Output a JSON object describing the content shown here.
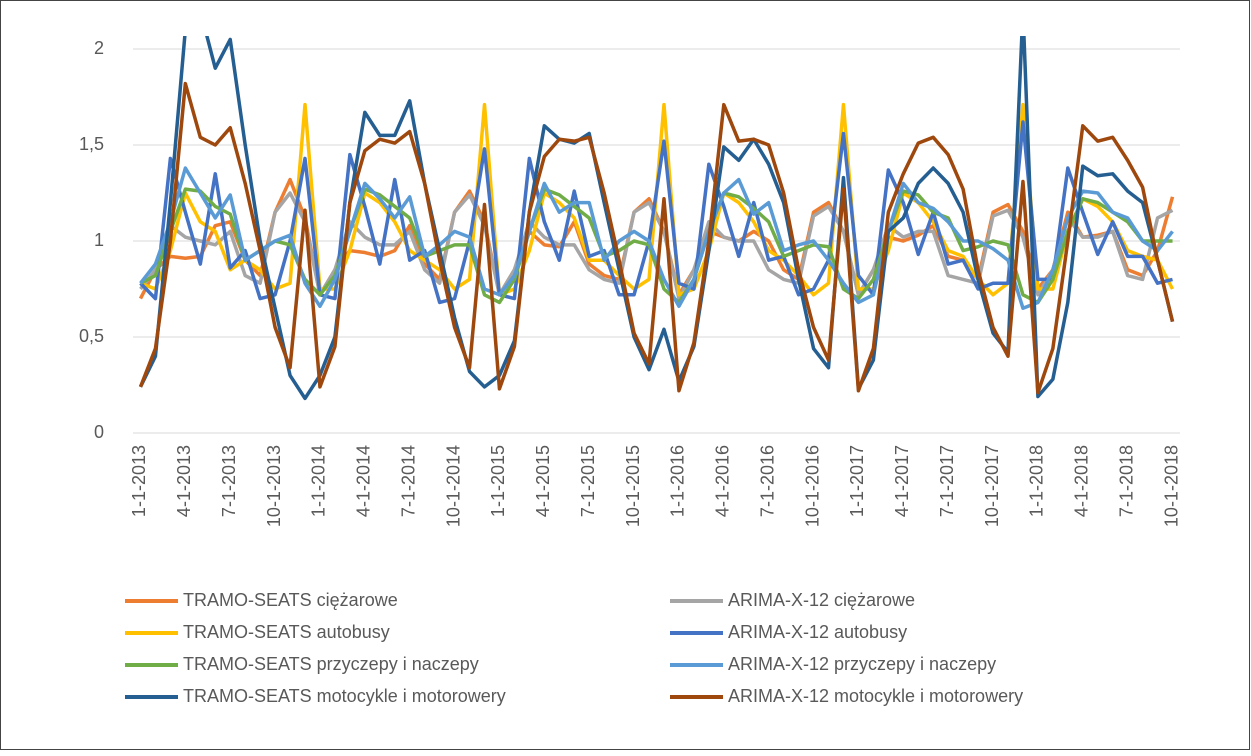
{
  "chart_data": {
    "type": "line",
    "categories": [
      "1-1-2013",
      null,
      null,
      "4-1-2013",
      null,
      null,
      "7-1-2013",
      null,
      null,
      "10-1-2013",
      null,
      null,
      "1-1-2014",
      null,
      null,
      "4-1-2014",
      null,
      null,
      "7-1-2014",
      null,
      null,
      "10-1-2014",
      null,
      null,
      "1-1-2015",
      null,
      null,
      "4-1-2015",
      null,
      null,
      "7-1-2015",
      null,
      null,
      "10-1-2015",
      null,
      null,
      "1-1-2016",
      null,
      null,
      "4-1-2016",
      null,
      null,
      "7-1-2016",
      null,
      null,
      "10-1-2016",
      null,
      null,
      "1-1-2017",
      null,
      null,
      "4-1-2017",
      null,
      null,
      "7-1-2017",
      null,
      null,
      "10-1-2017",
      null,
      null,
      "1-1-2018",
      null,
      null,
      "4-1-2018",
      null,
      null,
      "7-1-2018",
      null,
      null,
      "10-1-2018"
    ],
    "ylim": [
      0,
      2
    ],
    "yticks": [
      0,
      {
        "value": 0.5,
        "label": "0,5"
      },
      1,
      {
        "value": 1.5,
        "label": "1,5"
      },
      2
    ],
    "grid": true,
    "series": [
      {
        "name": "TRAMO-SEATS ciężarowe",
        "color": "#ed7d31",
        "values": [
          0.7,
          0.85,
          0.92,
          0.91,
          0.92,
          1.08,
          1.1,
          0.9,
          0.82,
          1.15,
          1.32,
          1.12,
          0.72,
          0.85,
          0.95,
          0.94,
          0.92,
          0.95,
          1.08,
          0.88,
          0.8,
          1.15,
          1.26,
          1.1,
          0.72,
          0.85,
          1.05,
          0.98,
          0.97,
          1.1,
          0.88,
          0.82,
          0.8,
          1.15,
          1.22,
          1.05,
          0.72,
          0.85,
          1.05,
          1.02,
          1.0,
          1.05,
          1.0,
          0.85,
          0.8,
          1.15,
          1.2,
          1.05,
          0.72,
          0.85,
          1.02,
          1.0,
          1.03,
          1.08,
          0.92,
          0.9,
          0.8,
          1.15,
          1.19,
          1.05,
          0.75,
          0.85,
          1.15,
          1.02,
          1.03,
          1.05,
          0.85,
          0.82,
          0.95,
          1.23
        ]
      },
      {
        "name": "ARIMA-X-12 ciężarowe",
        "color": "#a5a5a5",
        "values": [
          0.75,
          0.85,
          1.08,
          1.02,
          1.0,
          0.98,
          1.05,
          0.82,
          0.78,
          1.15,
          1.25,
          1.1,
          0.72,
          0.85,
          1.1,
          1.02,
          0.98,
          0.98,
          1.05,
          0.85,
          0.78,
          1.15,
          1.24,
          1.08,
          0.72,
          0.85,
          1.1,
          1.02,
          0.98,
          0.98,
          0.85,
          0.8,
          0.78,
          1.15,
          1.2,
          1.05,
          0.7,
          0.85,
          1.1,
          1.02,
          1.0,
          1.0,
          0.85,
          0.8,
          0.78,
          1.13,
          1.18,
          1.05,
          0.72,
          0.85,
          1.08,
          1.02,
          1.05,
          1.05,
          0.82,
          0.8,
          0.78,
          1.13,
          1.16,
          1.02,
          0.72,
          0.85,
          1.12,
          1.02,
          1.02,
          1.05,
          0.82,
          0.8,
          1.12,
          1.16
        ]
      },
      {
        "name": "TRAMO-SEATS autobusy",
        "color": "#ffc000",
        "values": [
          0.78,
          0.75,
          0.95,
          1.25,
          1.1,
          1.05,
          0.85,
          0.9,
          0.85,
          0.75,
          0.78,
          1.71,
          0.75,
          0.75,
          0.95,
          1.25,
          1.2,
          1.1,
          0.95,
          0.9,
          0.85,
          0.75,
          0.8,
          1.71,
          0.72,
          0.75,
          0.95,
          1.25,
          1.2,
          1.12,
          0.9,
          0.9,
          0.82,
          0.75,
          0.8,
          1.71,
          0.72,
          0.75,
          0.95,
          1.25,
          1.2,
          1.1,
          0.95,
          0.9,
          0.82,
          0.72,
          0.78,
          1.71,
          0.75,
          0.75,
          0.95,
          1.25,
          1.2,
          1.1,
          0.95,
          0.92,
          0.8,
          0.72,
          0.78,
          1.71,
          0.75,
          0.75,
          1.05,
          1.22,
          1.18,
          1.1,
          0.95,
          0.92,
          0.9,
          0.75
        ]
      },
      {
        "name": "ARIMA-X-12 autobusy",
        "color": "#4472c4",
        "values": [
          0.78,
          0.7,
          1.43,
          1.15,
          0.88,
          1.35,
          0.86,
          0.95,
          0.7,
          0.72,
          1.0,
          1.43,
          0.72,
          0.7,
          1.45,
          1.18,
          0.88,
          1.32,
          0.9,
          0.95,
          0.68,
          0.7,
          1.0,
          1.48,
          0.72,
          0.7,
          1.43,
          1.1,
          0.9,
          1.26,
          0.92,
          0.95,
          0.72,
          0.72,
          1.0,
          1.52,
          0.78,
          0.75,
          1.4,
          1.18,
          0.92,
          1.2,
          0.9,
          0.92,
          0.72,
          0.75,
          0.9,
          1.56,
          0.82,
          0.72,
          1.37,
          1.2,
          0.93,
          1.15,
          0.88,
          0.9,
          0.75,
          0.78,
          0.78,
          1.62,
          0.8,
          0.8,
          1.38,
          1.15,
          0.93,
          1.1,
          0.92,
          0.92,
          0.78,
          0.8
        ]
      },
      {
        "name": "TRAMO-SEATS przyczepy i naczepy",
        "color": "#70ad47",
        "values": [
          0.78,
          0.82,
          1.05,
          1.27,
          1.26,
          1.18,
          1.14,
          0.9,
          0.95,
          1.0,
          0.98,
          0.8,
          0.72,
          0.82,
          1.05,
          1.27,
          1.24,
          1.18,
          1.12,
          0.92,
          0.95,
          0.98,
          0.98,
          0.72,
          0.68,
          0.8,
          1.05,
          1.27,
          1.24,
          1.18,
          1.12,
          0.92,
          0.95,
          1.0,
          0.98,
          0.75,
          0.68,
          0.8,
          1.05,
          1.25,
          1.23,
          1.17,
          1.1,
          0.92,
          0.95,
          0.98,
          0.97,
          0.75,
          0.7,
          0.8,
          1.05,
          1.26,
          1.24,
          1.15,
          1.12,
          0.95,
          0.97,
          1.0,
          0.98,
          0.72,
          0.68,
          0.8,
          1.05,
          1.22,
          1.2,
          1.15,
          1.1,
          1.0,
          1.0,
          1.0
        ]
      },
      {
        "name": "ARIMA-X-12 przyczepy i naczepy",
        "color": "#5b9bd5",
        "values": [
          0.78,
          0.88,
          1.1,
          1.38,
          1.25,
          1.12,
          1.24,
          0.9,
          0.95,
          1.0,
          1.03,
          0.78,
          0.66,
          0.8,
          1.05,
          1.3,
          1.22,
          1.12,
          1.23,
          0.92,
          0.98,
          1.05,
          1.02,
          0.75,
          0.72,
          0.82,
          1.05,
          1.3,
          1.15,
          1.2,
          1.2,
          0.9,
          1.0,
          1.05,
          1.0,
          0.8,
          0.66,
          0.8,
          1.05,
          1.25,
          1.32,
          1.14,
          1.2,
          0.95,
          0.98,
          1.0,
          0.9,
          0.78,
          0.68,
          0.72,
          1.05,
          1.3,
          1.2,
          1.17,
          1.1,
          1.0,
          1.0,
          0.96,
          0.9,
          0.65,
          0.68,
          0.85,
          1.12,
          1.26,
          1.25,
          1.15,
          1.12,
          1.0,
          0.95,
          1.05
        ]
      },
      {
        "name": "TRAMO-SEATS motocykle i motorowery",
        "color": "#255e91",
        "values": [
          0.24,
          0.4,
          1.2,
          2.1,
          2.2,
          1.9,
          2.05,
          1.5,
          1.0,
          0.65,
          0.3,
          0.18,
          0.3,
          0.5,
          1.2,
          1.67,
          1.55,
          1.55,
          1.73,
          1.3,
          0.95,
          0.6,
          0.32,
          0.24,
          0.3,
          0.48,
          1.15,
          1.6,
          1.53,
          1.51,
          1.56,
          1.2,
          0.85,
          0.5,
          0.33,
          0.54,
          0.27,
          0.45,
          0.95,
          1.49,
          1.42,
          1.53,
          1.4,
          1.2,
          0.8,
          0.44,
          0.34,
          1.33,
          0.23,
          0.38,
          1.05,
          1.12,
          1.3,
          1.38,
          1.3,
          1.15,
          0.8,
          0.52,
          0.42,
          2.2,
          0.19,
          0.28,
          0.68,
          1.39,
          1.34,
          1.35,
          1.26,
          1.2,
          0.9,
          0.58
        ]
      },
      {
        "name": "ARIMA-X-12 motocykle i motorowery",
        "color": "#9e480e",
        "values": [
          0.24,
          0.44,
          1.0,
          1.82,
          1.54,
          1.5,
          1.59,
          1.3,
          0.95,
          0.55,
          0.34,
          1.16,
          0.24,
          0.45,
          1.2,
          1.47,
          1.53,
          1.51,
          1.57,
          1.3,
          0.9,
          0.55,
          0.34,
          1.19,
          0.23,
          0.45,
          1.15,
          1.44,
          1.53,
          1.52,
          1.54,
          1.25,
          0.9,
          0.52,
          0.36,
          1.22,
          0.22,
          0.47,
          1.0,
          1.71,
          1.52,
          1.53,
          1.5,
          1.25,
          0.85,
          0.55,
          0.38,
          1.27,
          0.22,
          0.44,
          1.15,
          1.35,
          1.51,
          1.54,
          1.45,
          1.27,
          0.85,
          0.55,
          0.4,
          1.31,
          0.21,
          0.44,
          1.0,
          1.6,
          1.52,
          1.54,
          1.42,
          1.28,
          0.9,
          0.58
        ]
      }
    ]
  }
}
